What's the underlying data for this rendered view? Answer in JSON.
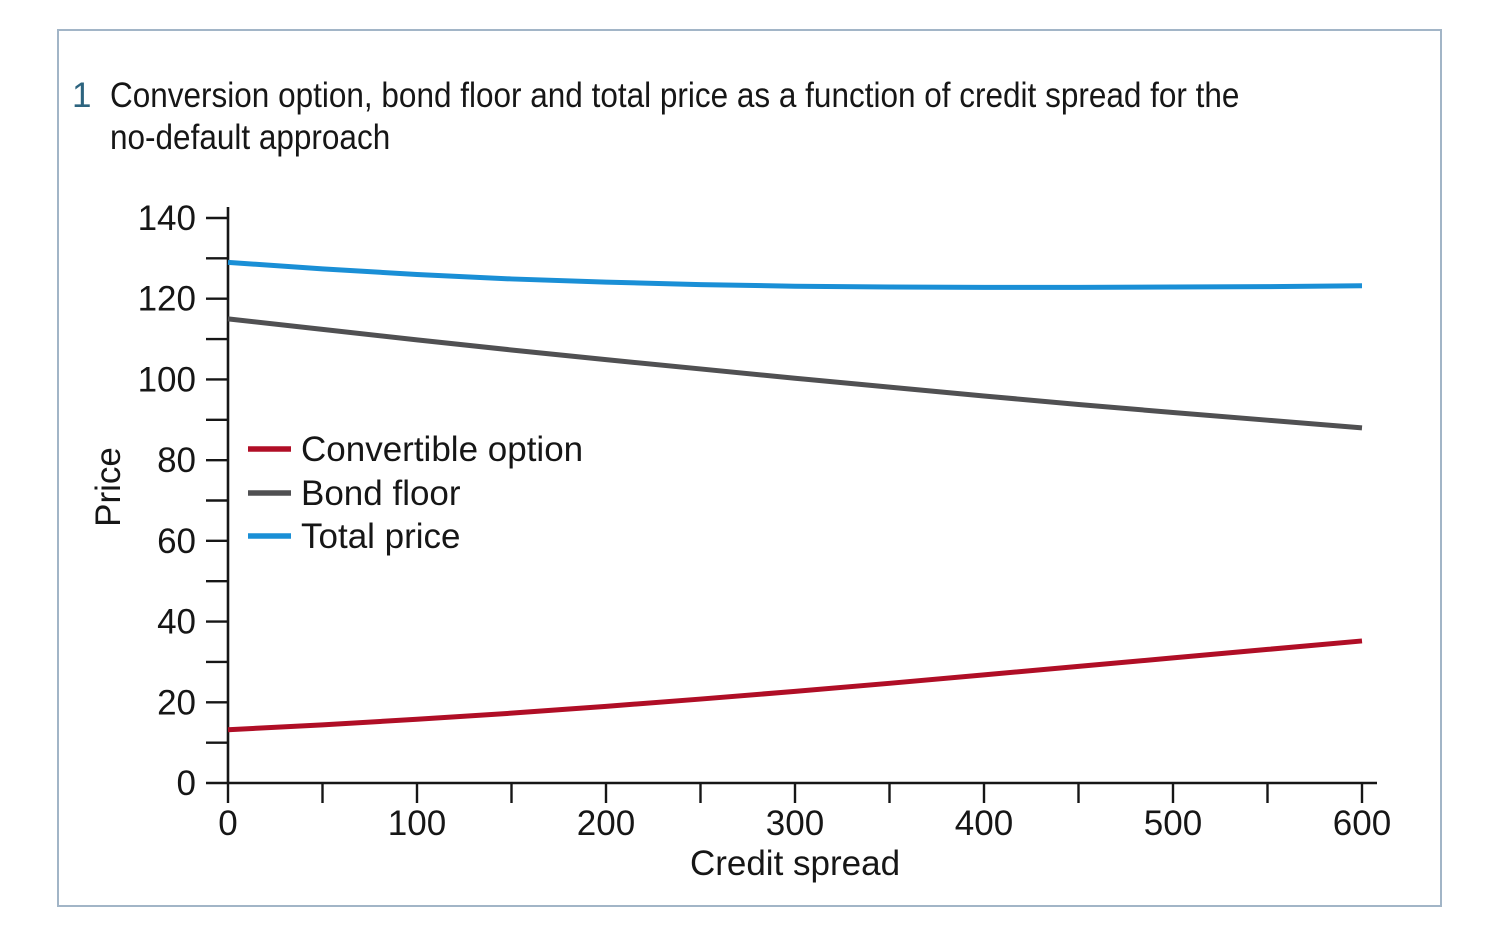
{
  "figure": {
    "number": "1",
    "title_lines": [
      "Conversion option, bond floor and total price as a function of credit spread for the",
      "no-default approach"
    ]
  },
  "colors": {
    "figure_number": "#2d647f",
    "panel_border": "#a2b5c7",
    "axis_and_text": "#161616",
    "convertible_option_line": "#b00e26",
    "bond_floor_line": "#505052",
    "total_price_line": "#1a8fd6"
  },
  "chart_data": {
    "type": "line",
    "title": "Conversion option, bond floor and total price as a function of credit spread for the no-default approach",
    "xlabel": "Credit spread",
    "ylabel": "Price",
    "xlim": [
      0,
      600
    ],
    "ylim": [
      0,
      140
    ],
    "x_major_ticks": [
      0,
      100,
      200,
      300,
      400,
      500,
      600
    ],
    "x_minor_step": 50,
    "y_major_ticks": [
      0,
      20,
      40,
      60,
      80,
      100,
      120,
      140
    ],
    "y_minor_step": 10,
    "grid": false,
    "legend_position": "inside-left-middle",
    "x": [
      0,
      50,
      100,
      150,
      200,
      250,
      300,
      350,
      400,
      450,
      500,
      550,
      600
    ],
    "series": [
      {
        "name": "Convertible option",
        "color": "#b00e26",
        "values": [
          13.2,
          14.4,
          15.8,
          17.3,
          19.0,
          20.8,
          22.7,
          24.7,
          26.8,
          28.9,
          31.0,
          33.1,
          35.2
        ]
      },
      {
        "name": "Bond floor",
        "color": "#505052",
        "values": [
          115.0,
          112.4,
          109.8,
          107.3,
          104.9,
          102.6,
          100.3,
          98.1,
          95.9,
          93.8,
          91.8,
          89.9,
          88.0
        ]
      },
      {
        "name": "Total price",
        "color": "#1a8fd6",
        "values": [
          129.0,
          127.4,
          126.0,
          124.9,
          124.1,
          123.5,
          123.1,
          122.9,
          122.8,
          122.8,
          122.9,
          123.0,
          123.2
        ]
      }
    ]
  }
}
